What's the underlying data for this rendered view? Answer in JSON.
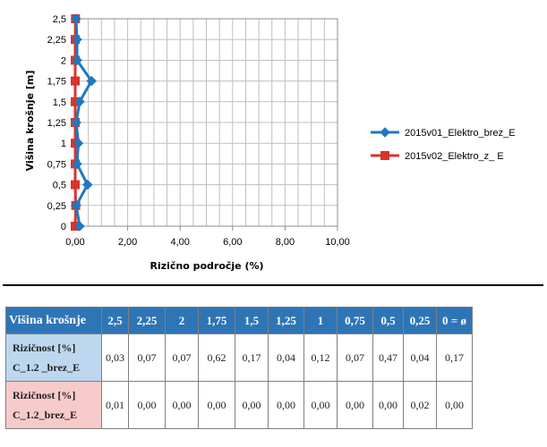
{
  "chart_data": {
    "type": "line",
    "orientation": "horizontal",
    "xlabel": "Rizično področje (%)",
    "ylabel": "Višina krošnje [m]",
    "xlim": [
      0,
      10
    ],
    "ylim": [
      0,
      2.5
    ],
    "x_ticks": [
      "0,00",
      "2,00",
      "4,00",
      "6,00",
      "8,00",
      "10,00"
    ],
    "y_ticks": [
      "0",
      "0,25",
      "0,5",
      "0,75",
      "1",
      "1,25",
      "1,5",
      "1,75",
      "2",
      "2,25",
      "2,5"
    ],
    "grid": true,
    "legend_position": "right",
    "series": [
      {
        "name": "2015v01_Elektro_brez_E",
        "color": "#1f78c1",
        "marker": "diamond",
        "points": [
          {
            "height": 2.5,
            "value": 0.03
          },
          {
            "height": 2.25,
            "value": 0.07
          },
          {
            "height": 2,
            "value": 0.07
          },
          {
            "height": 1.75,
            "value": 0.62
          },
          {
            "height": 1.5,
            "value": 0.17
          },
          {
            "height": 1.25,
            "value": 0.04
          },
          {
            "height": 1,
            "value": 0.12
          },
          {
            "height": 0.75,
            "value": 0.07
          },
          {
            "height": 0.5,
            "value": 0.47
          },
          {
            "height": 0.25,
            "value": 0.04
          },
          {
            "height": 0,
            "value": 0.17
          }
        ]
      },
      {
        "name": "2015v02_Elektro_z_ E",
        "color": "#d9342b",
        "marker": "square",
        "points": [
          {
            "height": 2.5,
            "value": 0.01
          },
          {
            "height": 2.25,
            "value": 0.0
          },
          {
            "height": 2,
            "value": 0.0
          },
          {
            "height": 1.75,
            "value": 0.0
          },
          {
            "height": 1.5,
            "value": 0.0
          },
          {
            "height": 1.25,
            "value": 0.0
          },
          {
            "height": 1,
            "value": 0.0
          },
          {
            "height": 0.75,
            "value": 0.0
          },
          {
            "height": 0.5,
            "value": 0.0
          },
          {
            "height": 0.25,
            "value": 0.02
          },
          {
            "height": 0,
            "value": 0.0
          }
        ]
      }
    ]
  },
  "table": {
    "header_label": "Višina krošnje",
    "columns": [
      "2,5",
      "2,25",
      "2",
      "1,75",
      "1,5",
      "1,25",
      "1",
      "0,75",
      "0,5",
      "0,25",
      "0 = ø"
    ],
    "rows": [
      {
        "label_line1": "Rizičnost [%]",
        "label_line2": "C_1.2 _brez_E",
        "values": [
          "0,03",
          "0,07",
          "0,07",
          "0,62",
          "0,17",
          "0,04",
          "0,12",
          "0,07",
          "0,47",
          "0,04",
          "0,17"
        ]
      },
      {
        "label_line1": "Rizičnost [%]",
        "label_line2": "C_1.2_brez_E",
        "values": [
          "0,01",
          "0,00",
          "0,00",
          "0,00",
          "0,00",
          "0,00",
          "0,00",
          "0,00",
          "0,00",
          "0,02",
          "0,00"
        ]
      }
    ]
  }
}
